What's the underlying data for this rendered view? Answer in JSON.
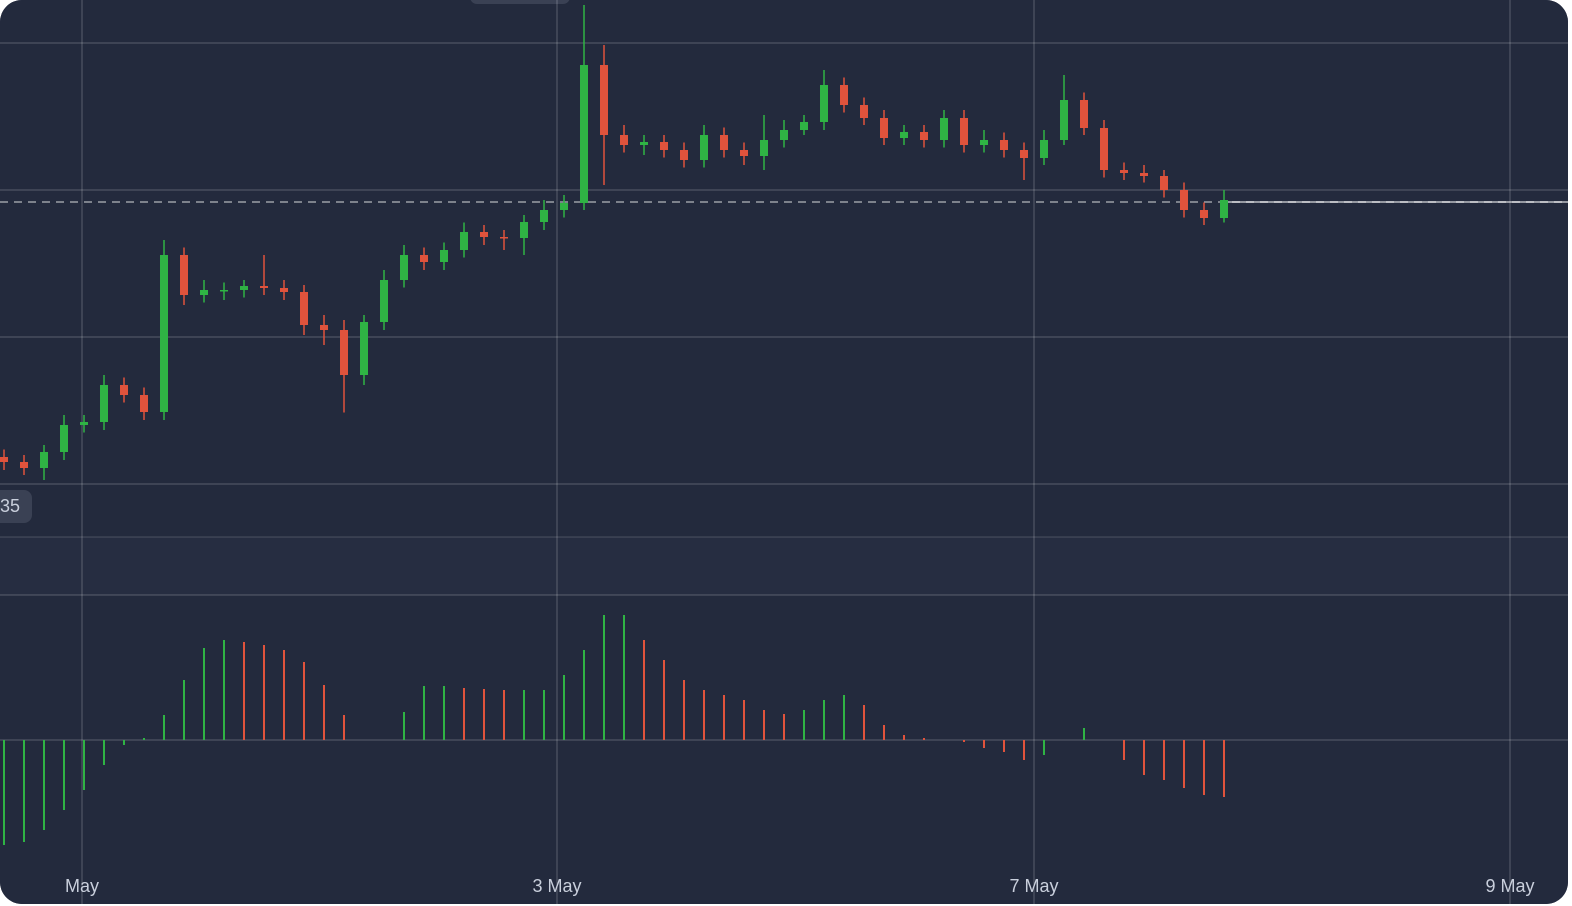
{
  "chart_data": [
    {
      "type": "candlestick",
      "open": [
        15.6,
        14.6,
        13.4,
        16.6,
        22,
        22.6,
        30,
        28,
        24.6,
        56,
        48,
        49,
        49,
        49.8,
        49.4,
        48.6,
        42,
        41,
        32,
        42.6,
        51,
        56,
        54.6,
        57,
        60.6,
        59.6,
        59.4,
        62.6,
        65,
        66.4,
        94,
        80,
        78,
        78.6,
        77,
        75,
        80,
        77,
        75.8,
        79,
        81,
        82.6,
        90,
        86,
        83.4,
        79.4,
        80.6,
        79,
        83.4,
        78,
        79,
        77,
        75.4,
        79,
        87,
        81.4,
        73,
        72.4,
        71.8,
        69,
        65,
        63.4
      ],
      "high": [
        17.1,
        16,
        18,
        24,
        24,
        32,
        31.5,
        29.5,
        59,
        57.5,
        51,
        50.5,
        51,
        56,
        51,
        50,
        44,
        43,
        44,
        53,
        58,
        57.5,
        58.5,
        62.5,
        62,
        61,
        64,
        67,
        68,
        106,
        98,
        82,
        80,
        80,
        78.5,
        82,
        81.5,
        78.5,
        84,
        83,
        84,
        93,
        91.5,
        87.5,
        85,
        82,
        82,
        85,
        85,
        81,
        80.5,
        78.5,
        81,
        92,
        88.5,
        83,
        74.5,
        74,
        73,
        70.5,
        66.5,
        69
      ],
      "low": [
        13,
        12,
        11,
        15,
        20.5,
        21,
        26.5,
        23,
        23,
        46,
        46.5,
        47,
        47.5,
        48,
        47,
        40,
        38,
        24.5,
        30,
        41,
        49.5,
        53,
        53,
        55.5,
        58,
        57,
        56,
        61,
        63.5,
        65,
        70,
        76.5,
        76,
        75.5,
        73.5,
        73.5,
        75.5,
        74,
        73,
        77.5,
        80,
        81,
        84.5,
        82,
        78,
        78,
        77.5,
        77.5,
        76.5,
        76.5,
        75.5,
        71,
        74,
        78,
        80,
        71.5,
        71,
        70.5,
        67.5,
        63.5,
        62,
        62.5
      ],
      "close": [
        14.6,
        13.4,
        16.6,
        22,
        22.6,
        30,
        28,
        24.6,
        56,
        48,
        49,
        49,
        49.8,
        49.4,
        48.6,
        42,
        41,
        32,
        42.6,
        51,
        56,
        54.6,
        57,
        60.6,
        59.6,
        59.4,
        62.6,
        65,
        66.4,
        94,
        80,
        78,
        78.6,
        77,
        75,
        80,
        77,
        75.8,
        79,
        81,
        82.6,
        90,
        86,
        83.4,
        79.4,
        80.6,
        79,
        83.4,
        78,
        79,
        77,
        75.4,
        79,
        87,
        81.4,
        73,
        72.4,
        71.8,
        69,
        65,
        63.4,
        67
      ],
      "xlim": [
        -0.2,
        78.2
      ],
      "xticks": [
        {
          "value": 3.9,
          "label": "May"
        },
        {
          "value": 27.65,
          "label": "3 May"
        },
        {
          "value": 51.5,
          "label": "7 May"
        },
        {
          "value": 75.3,
          "label": "9 May"
        }
      ],
      "ylim": [
        0,
        107
      ],
      "yticks": [
        10.2,
        39.6,
        69,
        98.4
      ],
      "grid": true,
      "up_color": "#2fb344",
      "down_color": "#e0533c",
      "current_price": 66.6,
      "price_tag": "35"
    },
    {
      "type": "bar",
      "values": [
        -21,
        -20.4,
        -18,
        -14,
        -10,
        -5,
        -1,
        0.4,
        5,
        12,
        18.4,
        20,
        19.6,
        19,
        18,
        15.6,
        11,
        5,
        0,
        0,
        5.6,
        10.8,
        10.8,
        10.4,
        10.2,
        10,
        10,
        10,
        13,
        18,
        25,
        25,
        20,
        16,
        12,
        10,
        9,
        8,
        6,
        5.2,
        6,
        8,
        9,
        7,
        3,
        1,
        0.4,
        0,
        -0.4,
        -1.6,
        -2.4,
        -4,
        -3,
        0,
        2.4,
        0,
        -4,
        -7,
        -8,
        -9.6,
        -11,
        -11.4
      ],
      "xlim": [
        -0.2,
        78.2
      ],
      "ylim": [
        -22,
        29
      ],
      "yticks": [
        0
      ],
      "grid": true,
      "up_color": "#2fb344",
      "down_color": "#e0533c"
    }
  ]
}
